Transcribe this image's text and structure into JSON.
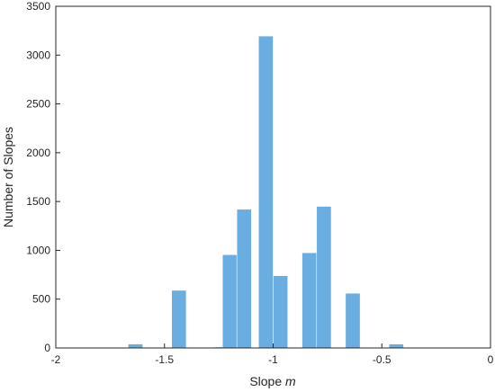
{
  "chart_data": {
    "type": "bar",
    "subtype": "histogram",
    "title": "",
    "xlabel": "Slope",
    "xlabel_italic": "m",
    "ylabel": "Number of Slopes",
    "xlim": [
      -2,
      0
    ],
    "ylim": [
      0,
      3500
    ],
    "xticks": [
      -2,
      -1.5,
      -1,
      -0.5,
      0
    ],
    "xtick_labels": [
      "-2",
      "-1.5",
      "-1",
      "-0.5",
      "0"
    ],
    "yticks": [
      0,
      500,
      1000,
      1500,
      2000,
      2500,
      3000,
      3500
    ],
    "ytick_labels": [
      "0",
      "500",
      "1000",
      "1500",
      "2000",
      "2500",
      "3000",
      "3500"
    ],
    "bin_width": 0.0667,
    "bars": [
      {
        "x0": -1.667,
        "x1": -1.6,
        "value": 40
      },
      {
        "x0": -1.467,
        "x1": -1.4,
        "value": 590
      },
      {
        "x0": -1.267,
        "x1": -1.2,
        "value": 10
      },
      {
        "x0": -1.233,
        "x1": -1.167,
        "value": 955
      },
      {
        "x0": -1.167,
        "x1": -1.1,
        "value": 1420
      },
      {
        "x0": -1.067,
        "x1": -1.0,
        "value": 3195
      },
      {
        "x0": -1.0,
        "x1": -0.933,
        "value": 740
      },
      {
        "x0": -0.867,
        "x1": -0.8,
        "value": 975
      },
      {
        "x0": -0.8,
        "x1": -0.733,
        "value": 1450
      },
      {
        "x0": -0.667,
        "x1": -0.6,
        "value": 560
      },
      {
        "x0": -0.467,
        "x1": -0.4,
        "value": 40
      }
    ],
    "colors": {
      "bar": "#6aade0",
      "axis": "#262626"
    },
    "grid": false,
    "box": true
  }
}
